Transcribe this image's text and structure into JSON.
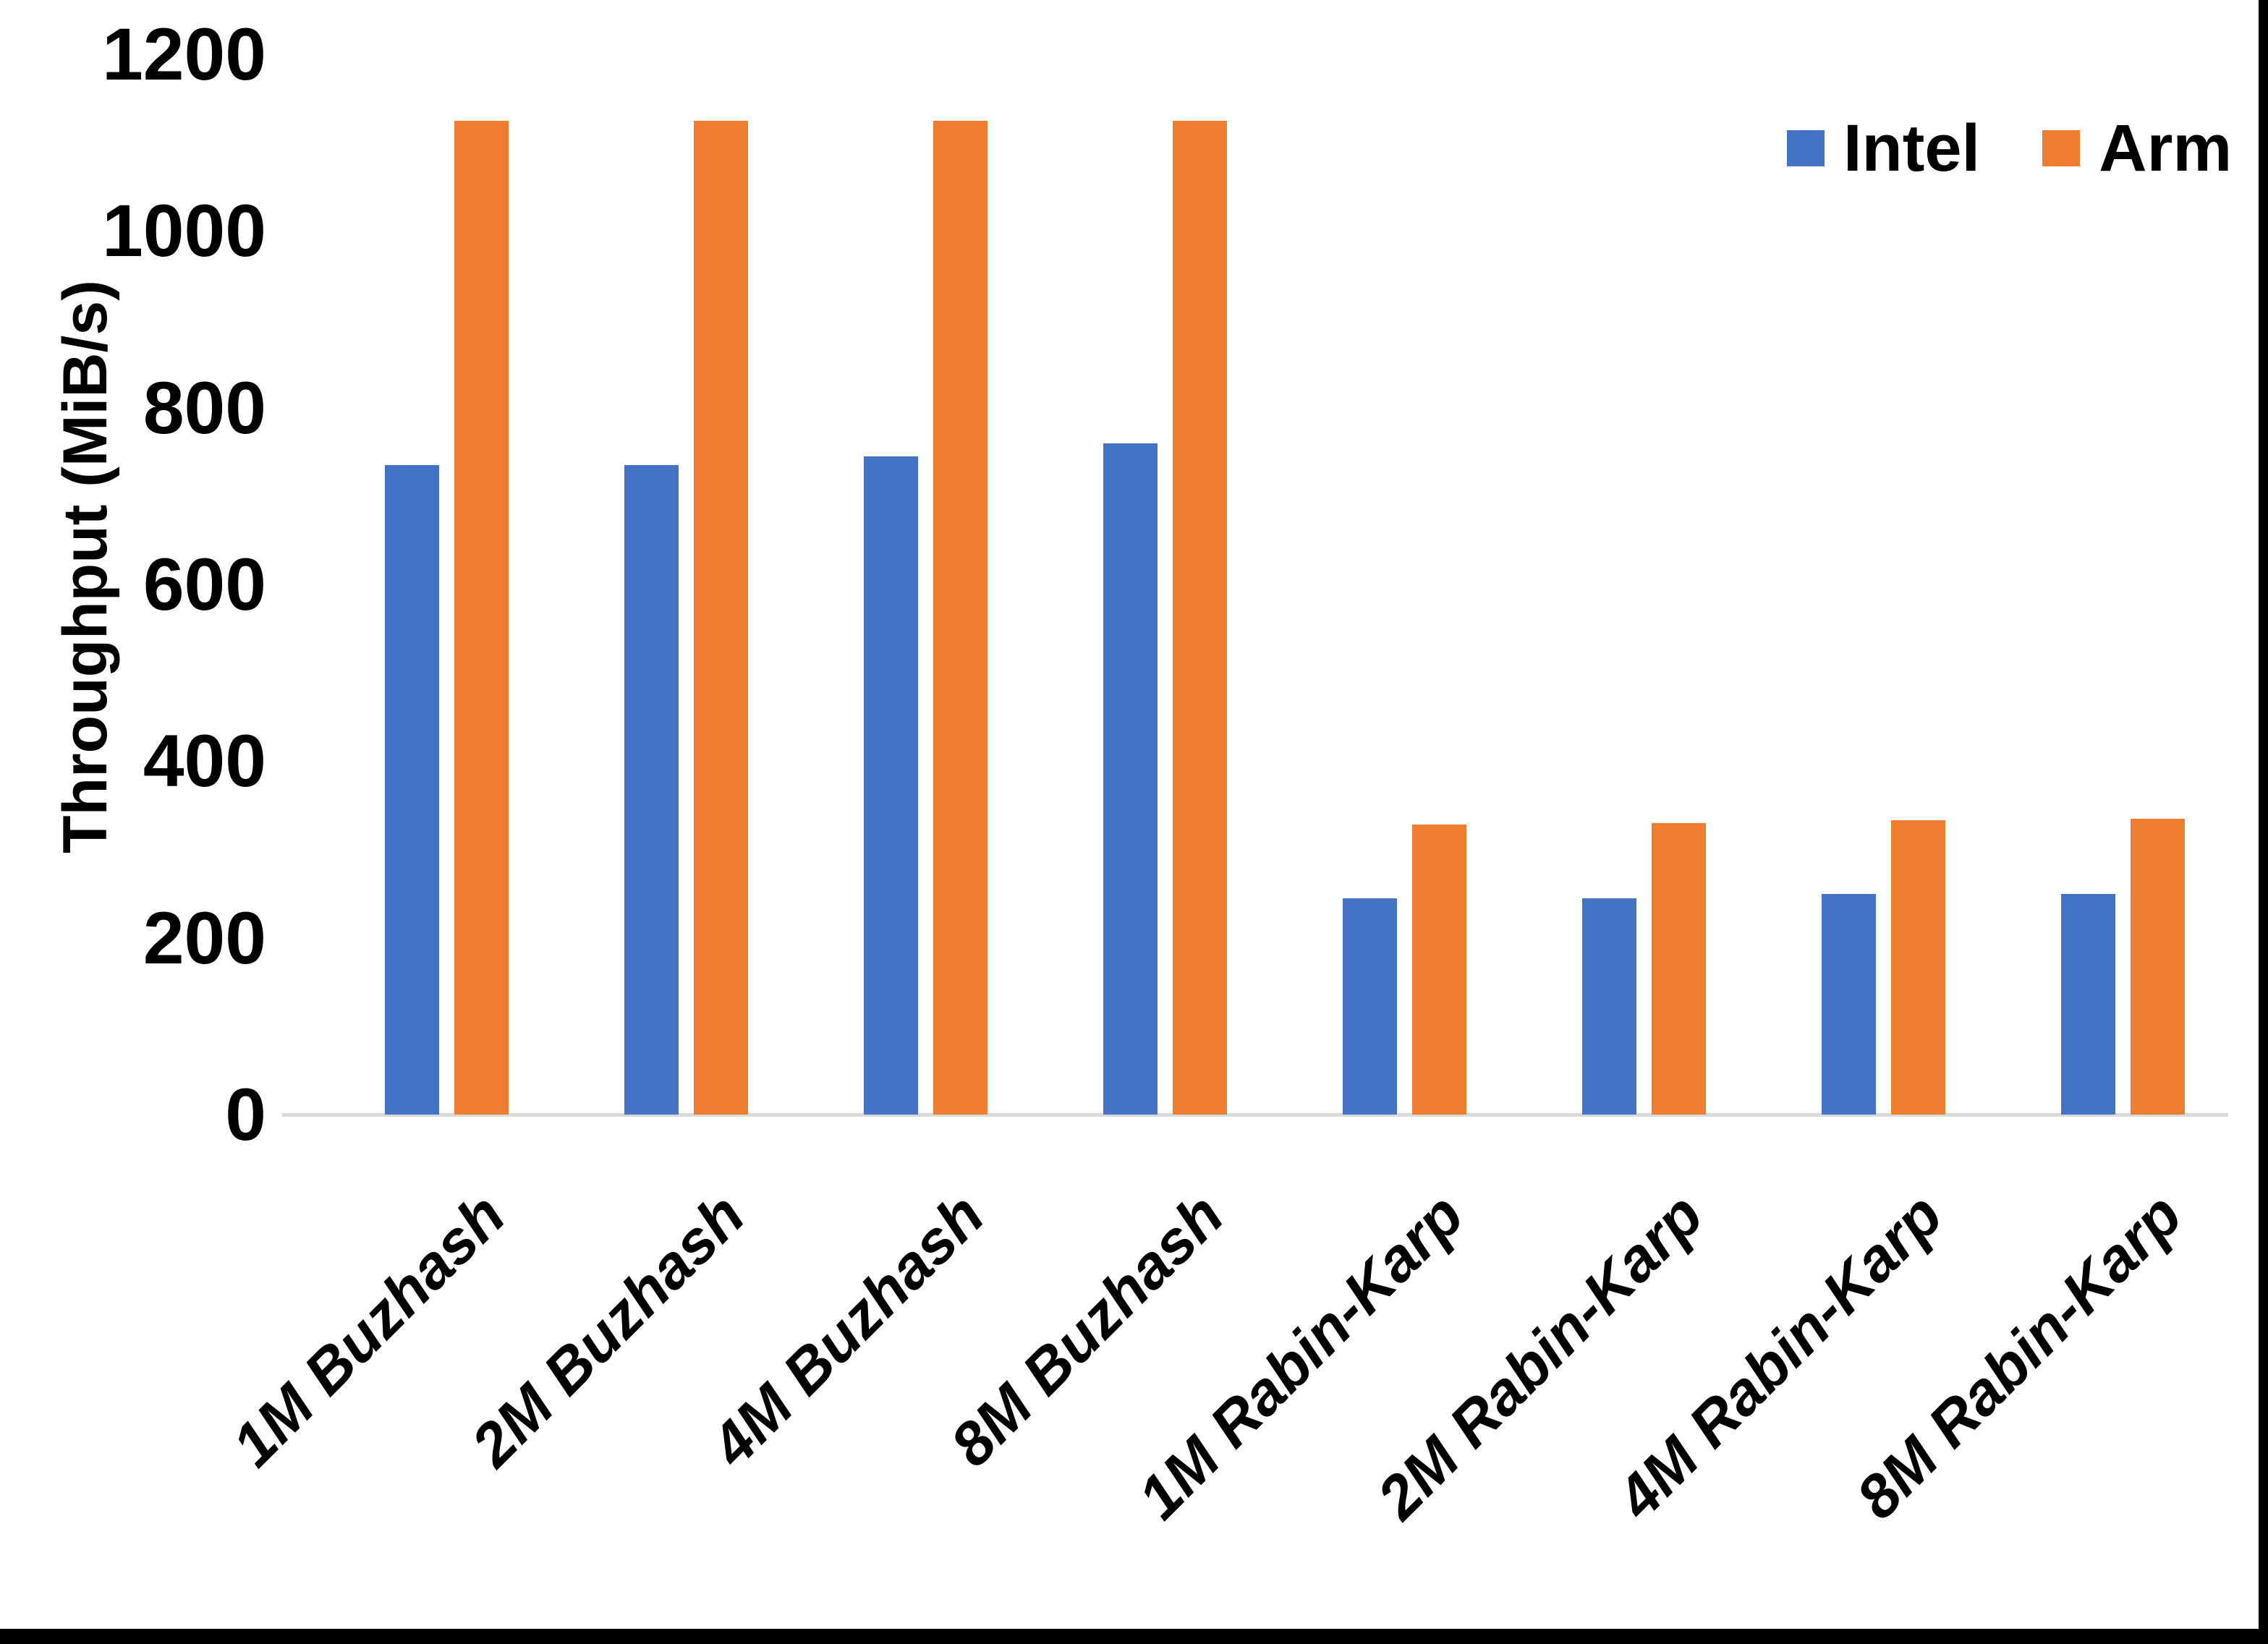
{
  "chart_data": {
    "type": "bar",
    "title": "",
    "categories": [
      "1M Buzhash",
      "2M Buzhash",
      "4M Buzhash",
      "8M Buzhash",
      "1M Rabin-Karp",
      "2M Rabin-Karp",
      "4M Rabin-Karp",
      "8M Rabin-Karp"
    ],
    "series": [
      {
        "name": "Intel",
        "color": "#4472C4",
        "values": [
          735,
          735,
          745,
          760,
          245,
          245,
          250,
          250
        ]
      },
      {
        "name": "Arm",
        "color": "#ED7D31",
        "values": [
          1125,
          1125,
          1125,
          1125,
          328,
          330,
          333,
          335
        ]
      }
    ],
    "xlabel": "",
    "ylabel": "Throughput (MiB/s)",
    "ylim": [
      0,
      1200
    ],
    "yticks": [
      0,
      200,
      400,
      600,
      800,
      1000,
      1200
    ],
    "grid": false,
    "legend_position": "top-right",
    "axis_line_color": "#D9D9D9",
    "text_color": "#000000",
    "background_color": "#FFFFFF",
    "frame_color": "#000000"
  }
}
